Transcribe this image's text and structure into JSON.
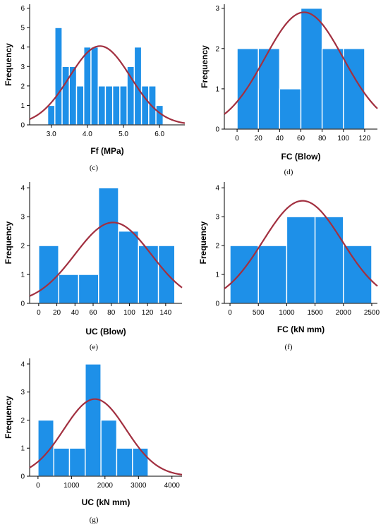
{
  "colors": {
    "bar": "#1e90e8",
    "bar_edge": "#ffffff",
    "curve": "#a23040"
  },
  "chart_data": [
    {
      "type": "bar",
      "caption": "(c)",
      "xlabel": "Ff (MPa)",
      "ylabel": "Frequency",
      "xlim": [
        2.4,
        6.7
      ],
      "ylim": [
        0,
        6.2
      ],
      "xticks": [
        "3.0",
        "4.0",
        "5.0",
        "6.0"
      ],
      "xtick_values": [
        3.0,
        4.0,
        5.0,
        6.0
      ],
      "yticks": [
        "0",
        "1",
        "2",
        "3",
        "4",
        "5",
        "6"
      ],
      "bins": [
        {
          "from": 2.9,
          "to": 3.1,
          "value": 1
        },
        {
          "from": 3.1,
          "to": 3.3,
          "value": 5
        },
        {
          "from": 3.3,
          "to": 3.5,
          "value": 3
        },
        {
          "from": 3.5,
          "to": 3.7,
          "value": 3
        },
        {
          "from": 3.7,
          "to": 3.9,
          "value": 2
        },
        {
          "from": 3.9,
          "to": 4.1,
          "value": 4
        },
        {
          "from": 4.1,
          "to": 4.3,
          "value": 4
        },
        {
          "from": 4.3,
          "to": 4.5,
          "value": 2
        },
        {
          "from": 4.5,
          "to": 4.7,
          "value": 2
        },
        {
          "from": 4.7,
          "to": 4.9,
          "value": 2
        },
        {
          "from": 4.9,
          "to": 5.1,
          "value": 2
        },
        {
          "from": 5.1,
          "to": 5.3,
          "value": 3
        },
        {
          "from": 5.3,
          "to": 5.5,
          "value": 4
        },
        {
          "from": 5.5,
          "to": 5.7,
          "value": 2
        },
        {
          "from": 5.7,
          "to": 5.9,
          "value": 2
        },
        {
          "from": 5.9,
          "to": 6.1,
          "value": 1
        }
      ],
      "normal_curve": {
        "mean": 4.35,
        "sd": 0.85,
        "peak": 4.05
      }
    },
    {
      "type": "bar",
      "caption": "(d)",
      "xlabel": "FC (Blow)",
      "ylabel": "Frequency",
      "xlim": [
        -12,
        132
      ],
      "ylim": [
        0,
        3.1
      ],
      "xticks": [
        "0",
        "20",
        "40",
        "60",
        "80",
        "100",
        "120"
      ],
      "xtick_values": [
        0,
        20,
        40,
        60,
        80,
        100,
        120
      ],
      "yticks": [
        "0",
        "1",
        "2",
        "3"
      ],
      "bins": [
        {
          "from": 0,
          "to": 20,
          "value": 2
        },
        {
          "from": 20,
          "to": 40,
          "value": 2
        },
        {
          "from": 40,
          "to": 60,
          "value": 1
        },
        {
          "from": 60,
          "to": 80,
          "value": 3
        },
        {
          "from": 80,
          "to": 100,
          "value": 2
        },
        {
          "from": 100,
          "to": 120,
          "value": 2
        }
      ],
      "normal_curve": {
        "mean": 63,
        "sd": 37,
        "peak": 2.9
      }
    },
    {
      "type": "bar",
      "caption": "(e)",
      "xlabel": "UC (Blow)",
      "ylabel": "Frequency",
      "xlim": [
        -10,
        158
      ],
      "ylim": [
        0,
        4.2
      ],
      "xticks": [
        "0",
        "20",
        "40",
        "60",
        "80",
        "100",
        "120",
        "140"
      ],
      "xtick_values": [
        0,
        20,
        40,
        60,
        80,
        100,
        120,
        140
      ],
      "yticks": [
        "0",
        "1",
        "2",
        "3",
        "4"
      ],
      "bins": [
        {
          "from": 0,
          "to": 22,
          "value": 2
        },
        {
          "from": 22,
          "to": 44,
          "value": 1
        },
        {
          "from": 44,
          "to": 66,
          "value": 1
        },
        {
          "from": 66,
          "to": 88,
          "value": 4
        },
        {
          "from": 88,
          "to": 110,
          "value": 2.5
        },
        {
          "from": 110,
          "to": 132,
          "value": 2
        },
        {
          "from": 132,
          "to": 150,
          "value": 2
        }
      ],
      "normal_curve": {
        "mean": 82,
        "sd": 42,
        "peak": 2.8
      }
    },
    {
      "type": "bar",
      "caption": "(f)",
      "xlabel": "FC (kN mm)",
      "ylabel": "Frequency",
      "xlim": [
        -100,
        2600
      ],
      "ylim": [
        0,
        4.2
      ],
      "xticks": [
        "0",
        "500",
        "1000",
        "1500",
        "2000",
        "2500"
      ],
      "xtick_values": [
        0,
        500,
        1000,
        1500,
        2000,
        2500
      ],
      "yticks": [
        "0",
        "1",
        "2",
        "3",
        "4"
      ],
      "bins": [
        {
          "from": 0,
          "to": 500,
          "value": 2
        },
        {
          "from": 500,
          "to": 1000,
          "value": 2
        },
        {
          "from": 1000,
          "to": 1500,
          "value": 3
        },
        {
          "from": 1500,
          "to": 2000,
          "value": 3
        },
        {
          "from": 2000,
          "to": 2500,
          "value": 2
        }
      ],
      "normal_curve": {
        "mean": 1280,
        "sd": 700,
        "peak": 3.55
      }
    },
    {
      "type": "bar",
      "caption": "(g)",
      "xlabel": "UC (kN mm)",
      "ylabel": "Frequency",
      "xlim": [
        -250,
        4300
      ],
      "ylim": [
        0,
        4.2
      ],
      "xticks": [
        "0",
        "1000",
        "2000",
        "3000",
        "4000"
      ],
      "xtick_values": [
        0,
        1000,
        2000,
        3000,
        4000
      ],
      "yticks": [
        "0",
        "1",
        "2",
        "3",
        "4"
      ],
      "bins": [
        {
          "from": 0,
          "to": 470,
          "value": 2
        },
        {
          "from": 470,
          "to": 940,
          "value": 1
        },
        {
          "from": 940,
          "to": 1410,
          "value": 1
        },
        {
          "from": 1410,
          "to": 1880,
          "value": 4
        },
        {
          "from": 1880,
          "to": 2350,
          "value": 2
        },
        {
          "from": 2350,
          "to": 2820,
          "value": 1
        },
        {
          "from": 2820,
          "to": 3290,
          "value": 1
        }
      ],
      "normal_curve": {
        "mean": 1700,
        "sd": 930,
        "peak": 2.75
      }
    }
  ]
}
